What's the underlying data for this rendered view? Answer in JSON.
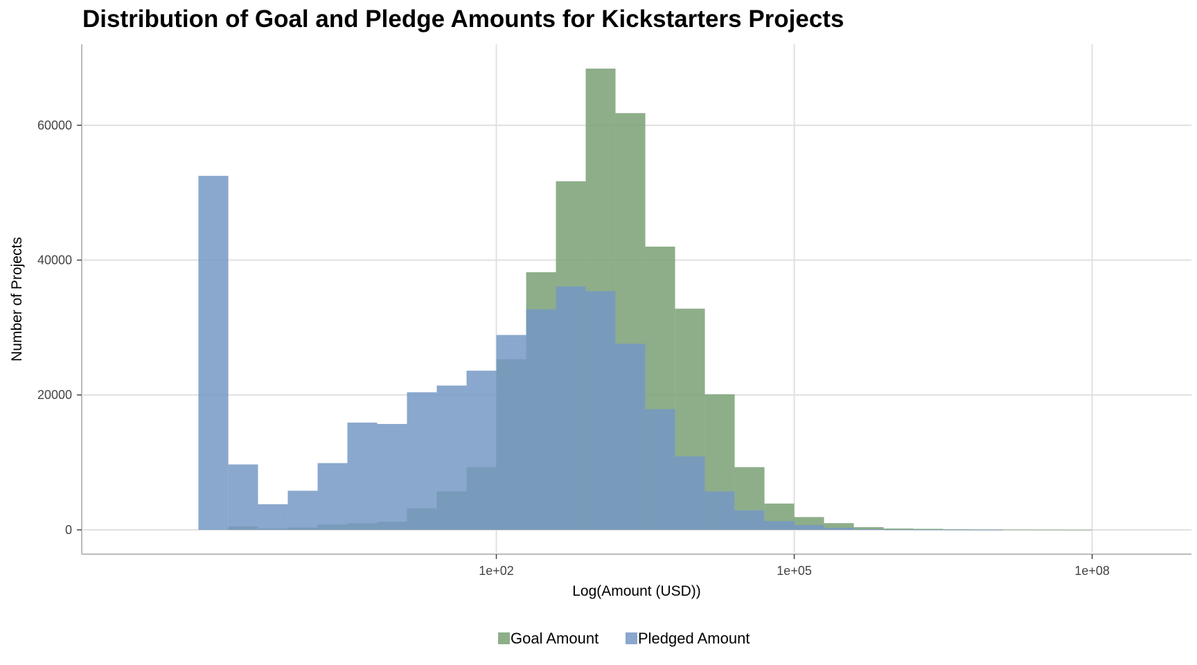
{
  "chart_data": {
    "type": "bar",
    "title": "Distribution of Goal and Pledge Amounts for Kickstarters Projects",
    "xlabel": "Log(Amount (USD))",
    "ylabel": "Number of Projects",
    "x_scale": "log10",
    "xlim": [
      0.0069,
      1000000000
    ],
    "ylim": [
      -3400,
      72000
    ],
    "x_ticks": [
      100,
      100000,
      100000000
    ],
    "x_tick_labels": [
      "1e+02",
      "1e+05",
      "1e+08"
    ],
    "y_ticks": [
      0,
      20000,
      40000,
      60000
    ],
    "y_tick_labels": [
      "0",
      "20000",
      "40000",
      "60000"
    ],
    "grid": true,
    "legend_position": "bottom",
    "bin_edges": [
      0.1,
      0.2,
      0.398,
      0.794,
      1.585,
      3.162,
      6.31,
      12.59,
      25.12,
      50.12,
      100,
      199.5,
      398.1,
      794.3,
      1585,
      3162,
      6310,
      12590,
      25120,
      50120,
      100000,
      199500,
      398100,
      794300,
      1585000,
      3162000,
      6310000,
      12590000,
      25120000,
      50120000,
      100000000,
      199500000
    ],
    "series": [
      {
        "name": "Goal Amount",
        "color": "#79a074",
        "values": [
          0,
          500,
          200,
          350,
          800,
          1000,
          1200,
          3200,
          5700,
          9300,
          25300,
          38200,
          51700,
          68400,
          61800,
          42000,
          32800,
          20100,
          9300,
          3900,
          1900,
          1000,
          400,
          200,
          150,
          80,
          50,
          30,
          20,
          10,
          0
        ]
      },
      {
        "name": "Pledged Amount",
        "color": "#7598c4",
        "values": [
          52500,
          9700,
          3800,
          5800,
          9900,
          15900,
          15700,
          20400,
          21400,
          23600,
          28900,
          32700,
          36100,
          35400,
          27600,
          17900,
          10900,
          5700,
          2900,
          1300,
          700,
          300,
          100,
          50,
          30,
          20,
          10,
          0,
          0,
          0,
          0
        ]
      }
    ]
  }
}
